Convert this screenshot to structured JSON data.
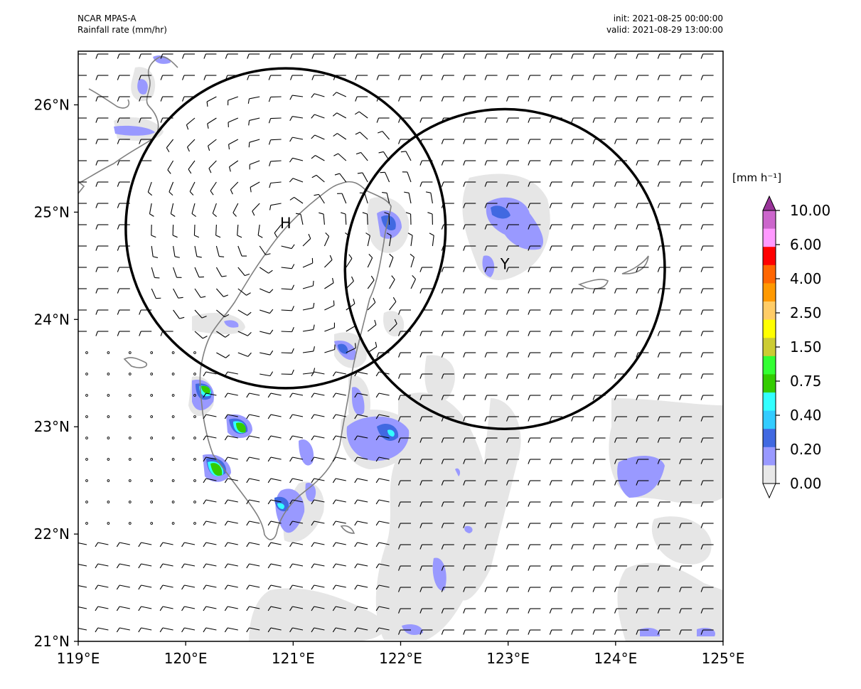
{
  "header": {
    "model": "NCAR MPAS-A",
    "field": "Rainfall rate (mm/hr)",
    "init": "init: 2021-08-25 00:00:00",
    "valid": "valid: 2021-08-29 13:00:00"
  },
  "map": {
    "lon_range": [
      119,
      125
    ],
    "lat_range": [
      21,
      26.5
    ],
    "x_ticks": [
      "119°E",
      "120°E",
      "121°E",
      "122°E",
      "123°E",
      "124°E",
      "125°E"
    ],
    "y_ticks": [
      "21°N",
      "22°N",
      "23°N",
      "24°N",
      "25°N",
      "26°N"
    ],
    "coastline_color": "#808080",
    "circles": [
      {
        "label": "H",
        "center_lon": 120.93,
        "center_lat": 24.85,
        "radius_deg": 1.49
      },
      {
        "label": "Y",
        "center_lon": 122.97,
        "center_lat": 24.47,
        "radius_deg": 1.49
      }
    ]
  },
  "colorbar": {
    "units": "[mm h⁻¹]",
    "levels": [
      "0.00",
      "0.20",
      "0.40",
      "0.75",
      "1.50",
      "2.50",
      "4.00",
      "6.00",
      "10.00"
    ],
    "colors": [
      "#ffffff",
      "#e8e8e8",
      "#9999ff",
      "#4169e1",
      "#33ccff",
      "#33ffff",
      "#33cc00",
      "#33ff33",
      "#cccc33",
      "#ffff00",
      "#ffcc66",
      "#ff9900",
      "#ff6600",
      "#ff0000",
      "#ff99ff",
      "#cc66cc",
      "#993399"
    ]
  }
}
